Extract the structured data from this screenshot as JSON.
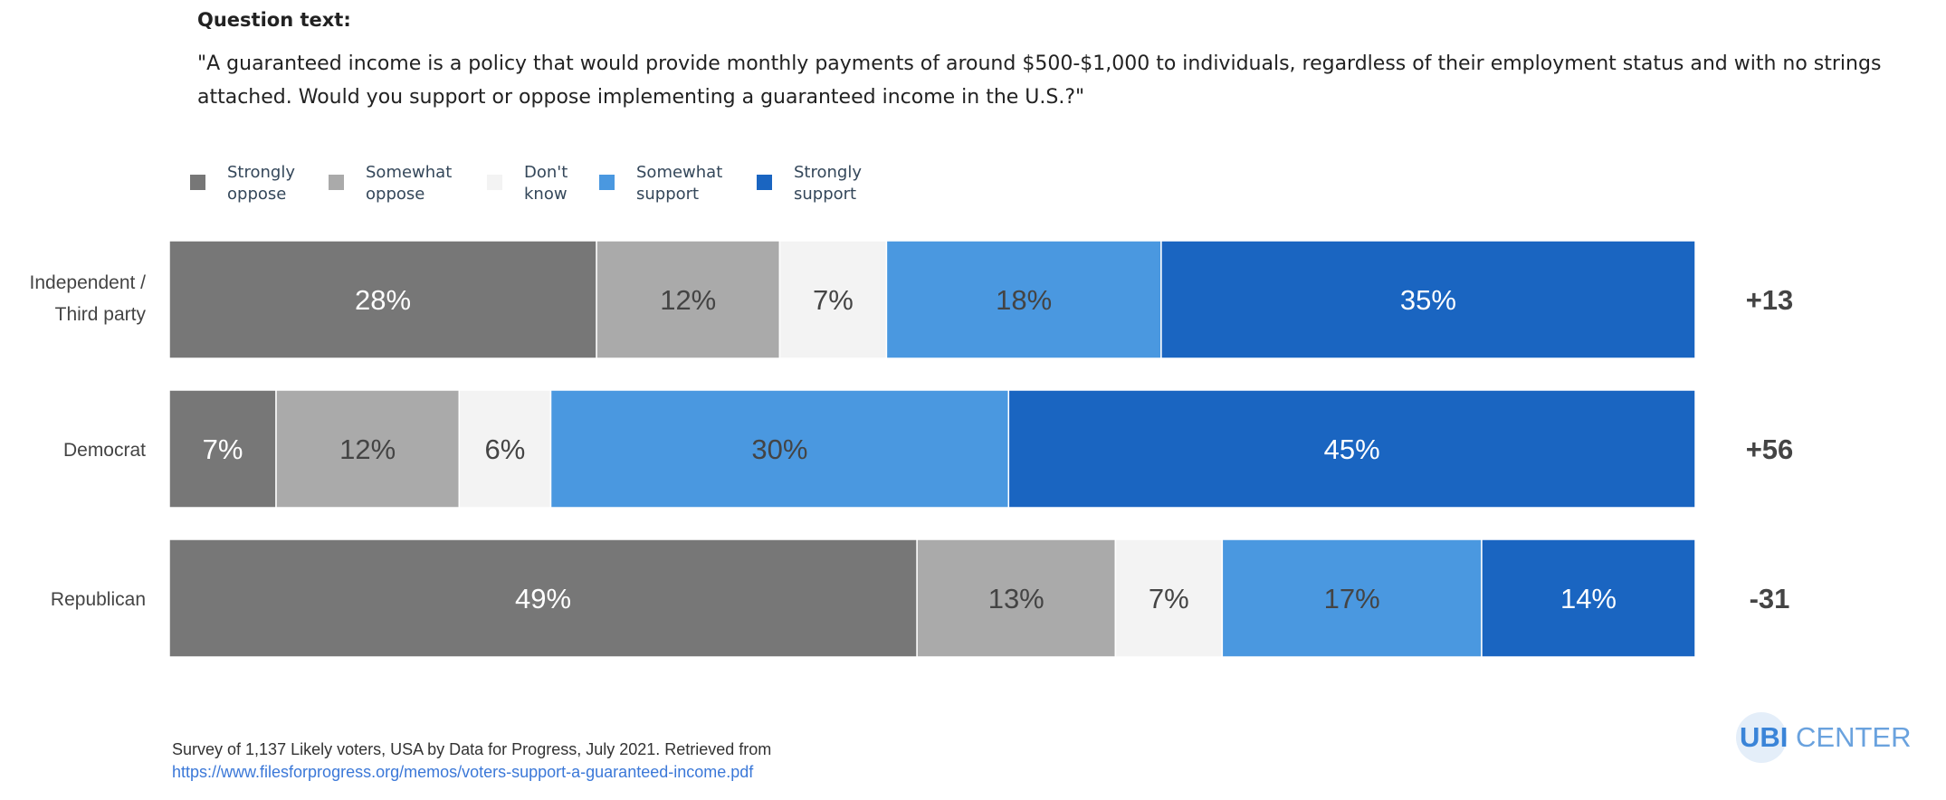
{
  "question": {
    "heading": "Question text:",
    "text": "\"A guaranteed income is a policy that would provide monthly payments of around $500-$1,000 to individuals, regardless of their employment status and with no strings attached. Would you support or oppose implementing a guaranteed income in the U.S.?\""
  },
  "chart_data": {
    "type": "bar",
    "orientation": "horizontal-stacked",
    "legend_placement": "top-left",
    "categories": [
      "Independent / Third party",
      "Democrat",
      "Republican"
    ],
    "series": [
      {
        "name": "Strongly oppose",
        "color": "#777777",
        "label_color": "#ffffff",
        "values": [
          28,
          7,
          49
        ]
      },
      {
        "name": "Somewhat oppose",
        "color": "#aaaaaa",
        "label_color": "#444444",
        "values": [
          12,
          12,
          13
        ]
      },
      {
        "name": "Don't know",
        "color": "#f3f3f3",
        "label_color": "#444444",
        "values": [
          7,
          6,
          7
        ]
      },
      {
        "name": "Somewhat support",
        "color": "#4a98e0",
        "label_color": "#444444",
        "values": [
          18,
          30,
          17
        ]
      },
      {
        "name": "Strongly support",
        "color": "#1a65c1",
        "label_color": "#ffffff",
        "values": [
          35,
          45,
          14
        ]
      }
    ],
    "net": [
      "+13",
      "+56",
      "-31"
    ],
    "value_suffix": "%"
  },
  "source": {
    "text": "Survey of 1,137 Likely voters, USA by Data for Progress, July 2021. Retrieved from",
    "link": "https://www.filesforprogress.org/memos/voters-support-a-guaranteed-income.pdf"
  },
  "logo": {
    "part1": "UBI",
    "part2": "CENTER"
  }
}
